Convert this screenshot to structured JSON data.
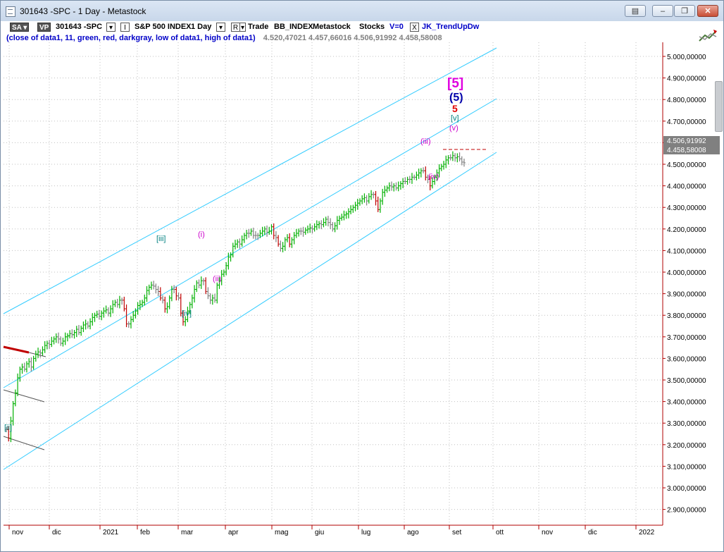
{
  "window": {
    "title": "301643 -SPC - 1 Day - Metastock"
  },
  "toolbar": {
    "sa_label": "SA",
    "vp_label": "VP",
    "symbol_code": "301643 -SPC",
    "symbol_name": "S&P 500 INDEX",
    "interval": "1 Day",
    "i_label": "I",
    "r_label": "R",
    "trade_label": "Trade",
    "exchange": "BB_INDEX",
    "source": "Metastock",
    "category": "Stocks",
    "volume": "V=0",
    "close_glyph": "X",
    "indicator": "JK_TrendUpDw"
  },
  "legend": {
    "formula": "(close of data1,  11,  green,  red,  darkgray,  low of data1,  high of data1)",
    "values": "4.520,47021   4.457,66016   4.506,91992   4.458,58008"
  },
  "chart_data": {
    "type": "candlestick",
    "y_axis_ticks": [
      "5.000,00000",
      "4.900,00000",
      "4.800,00000",
      "4.700,00000",
      "4.600,00000",
      "4.500,00000",
      "4.400,00000",
      "4.300,00000",
      "4.200,00000",
      "4.100,00000",
      "4.000,00000",
      "3.900,00000",
      "3.800,00000",
      "3.700,00000",
      "3.600,00000",
      "3.500,00000",
      "3.400,00000",
      "3.300,00000",
      "3.200,00000",
      "3.100,00000",
      "3.000,00000",
      "2.900,00000"
    ],
    "x_axis_ticks": [
      "nov",
      "dic",
      "2021",
      "feb",
      "mar",
      "apr",
      "mag",
      "giu",
      "lug",
      "ago",
      "set",
      "ott",
      "nov",
      "dic",
      "2022"
    ],
    "last_values": [
      "4.506,91992",
      "4.458,58008"
    ],
    "wave_labels": [
      {
        "text": "[ii]",
        "color": "#008080"
      },
      {
        "text": "[iii]",
        "color": "#008080"
      },
      {
        "text": "[iv]",
        "color": "#008080"
      },
      {
        "text": "(i)",
        "color": "#cc00cc"
      },
      {
        "text": "(ii)",
        "color": "#cc00cc"
      },
      {
        "text": "(iii)",
        "color": "#cc00cc"
      },
      {
        "text": "(iv)",
        "color": "#cc00cc"
      },
      {
        "text": "(v)",
        "color": "#cc00cc"
      },
      {
        "text": "[v]",
        "color": "#008080"
      },
      {
        "text": "5",
        "color": "#e00000"
      },
      {
        "text": "(5)",
        "color": "#0000aa"
      },
      {
        "text": "[5]",
        "color": "#e000e0"
      }
    ],
    "series_close": [
      3270,
      3230,
      3310,
      3390,
      3440,
      3510,
      3550,
      3560,
      3550,
      3575,
      3585,
      3560,
      3600,
      3620,
      3630,
      3625,
      3640,
      3660,
      3670,
      3665,
      3680,
      3690,
      3700,
      3690,
      3670,
      3680,
      3700,
      3705,
      3715,
      3710,
      3720,
      3735,
      3720,
      3740,
      3755,
      3760,
      3750,
      3770,
      3790,
      3800,
      3805,
      3795,
      3810,
      3820,
      3825,
      3810,
      3830,
      3850,
      3860,
      3850,
      3870,
      3870,
      3830,
      3760,
      3760,
      3780,
      3800,
      3820,
      3845,
      3850,
      3860,
      3880,
      3915,
      3930,
      3940,
      3935,
      3920,
      3910,
      3880,
      3870,
      3830,
      3840,
      3880,
      3920,
      3920,
      3890,
      3880,
      3810,
      3770,
      3780,
      3820,
      3850,
      3880,
      3920,
      3950,
      3940,
      3960,
      3960,
      3910,
      3890,
      3870,
      3880,
      3870,
      3940,
      3960,
      3990,
      4000,
      4030,
      4070,
      4080,
      4120,
      4130,
      4140,
      4130,
      4150,
      4170,
      4180,
      4180,
      4190,
      4170,
      4170,
      4170,
      4180,
      4190,
      4200,
      4185,
      4190,
      4210,
      4170,
      4160,
      4130,
      4110,
      4120,
      4150,
      4160,
      4130,
      4150,
      4170,
      4180,
      4190,
      4190,
      4185,
      4195,
      4200,
      4205,
      4200,
      4210,
      4220,
      4225,
      4220,
      4230,
      4245,
      4230,
      4220,
      4200,
      4215,
      4240,
      4250,
      4255,
      4265,
      4270,
      4280,
      4290,
      4300,
      4310,
      4320,
      4330,
      4340,
      4345,
      4330,
      4350,
      4360,
      4360,
      4330,
      4290,
      4330,
      4370,
      4380,
      4390,
      4400,
      4395,
      4400,
      4390,
      4400,
      4410,
      4420,
      4420,
      4430,
      4430,
      4440,
      4440,
      4450,
      4460,
      4470,
      4470,
      4440,
      4430,
      4400,
      4420,
      4440,
      4460,
      4480,
      4490,
      4500,
      4520,
      4530,
      4530,
      4540,
      4530,
      4535,
      4525,
      4510,
      4507
    ]
  },
  "colors": {
    "channel": "#33ccff",
    "up_bar": "#00b000",
    "down_bar": "#c00000",
    "neutral_bar": "#808080",
    "axis": "#b00000",
    "grid": "#c0c0c0",
    "last_box": "#808080"
  }
}
